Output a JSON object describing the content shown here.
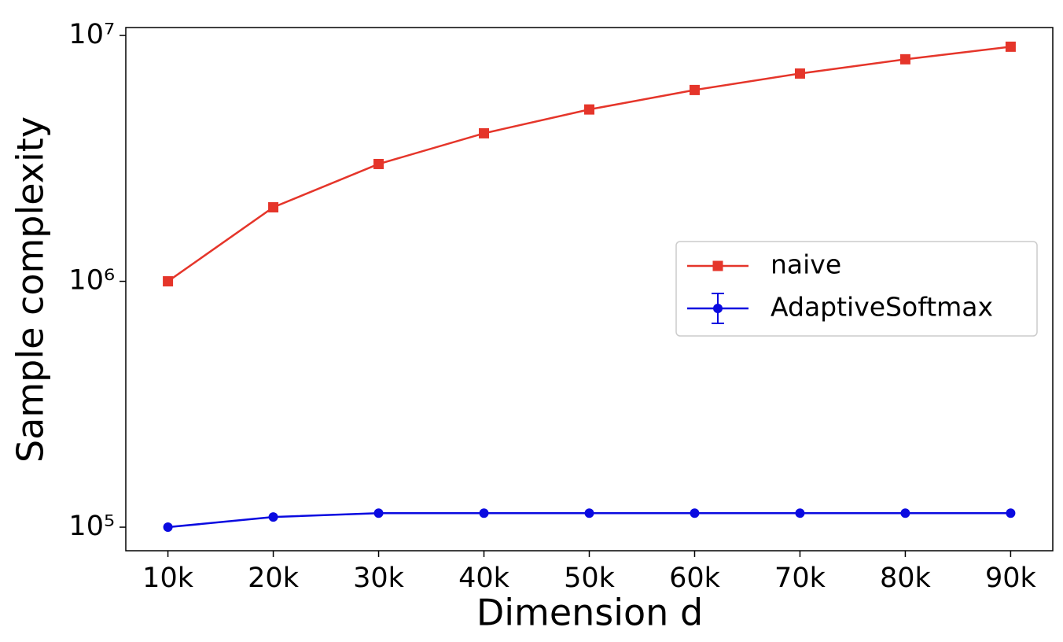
{
  "chart_data": {
    "type": "line",
    "x_label": "Dimension d",
    "y_label": "Sample complexity",
    "x": [
      10000,
      20000,
      30000,
      40000,
      50000,
      60000,
      70000,
      80000,
      90000
    ],
    "series": [
      {
        "name": "naive",
        "color": "#e5352a",
        "marker": "square",
        "values": [
          1000000,
          2000000,
          3000000,
          4000000,
          5000000,
          6000000,
          7000000,
          8000000,
          9000000
        ]
      },
      {
        "name": "AdaptiveSoftmax",
        "color": "#0a0ae0",
        "marker": "circle",
        "values": [
          100000,
          110000,
          114000,
          114000,
          114000,
          114000,
          114000,
          114000,
          114000
        ]
      }
    ],
    "xlim": [
      6000,
      94000
    ],
    "ylim": [
      80200,
      10770000
    ],
    "y_scale": "log",
    "xticks": [
      {
        "value": 10000,
        "label": "10k"
      },
      {
        "value": 20000,
        "label": "20k"
      },
      {
        "value": 30000,
        "label": "30k"
      },
      {
        "value": 40000,
        "label": "40k"
      },
      {
        "value": 50000,
        "label": "50k"
      },
      {
        "value": 60000,
        "label": "60k"
      },
      {
        "value": 70000,
        "label": "70k"
      },
      {
        "value": 80000,
        "label": "80k"
      },
      {
        "value": 90000,
        "label": "90k"
      }
    ],
    "yticks": [
      {
        "value": 100000,
        "label": "10⁵"
      },
      {
        "value": 1000000,
        "label": "10⁶"
      },
      {
        "value": 10000000,
        "label": "10⁷"
      }
    ],
    "legend": "right"
  }
}
